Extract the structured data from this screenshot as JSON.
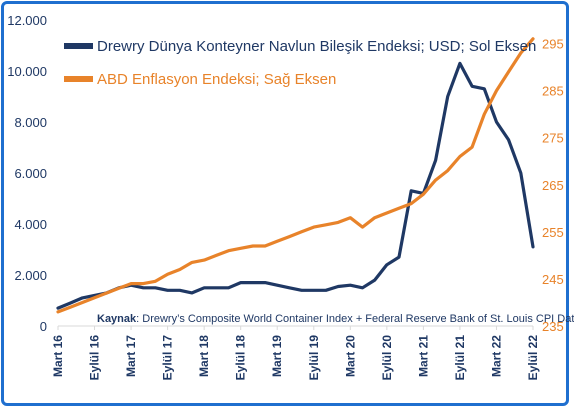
{
  "chart_data": {
    "type": "line",
    "legend_position": "top-left",
    "grid": false,
    "series": [
      {
        "name": "Drewry Dünya Konteyner Navlun Bileşik Endeksi; USD; Sol Eksen",
        "axis": "left",
        "color": "#1f3864",
        "points": [
          [
            "2016-03",
            700
          ],
          [
            "2016-05",
            900
          ],
          [
            "2016-07",
            1100
          ],
          [
            "2016-09",
            1200
          ],
          [
            "2016-11",
            1300
          ],
          [
            "2017-01",
            1500
          ],
          [
            "2017-03",
            1600
          ],
          [
            "2017-05",
            1500
          ],
          [
            "2017-07",
            1500
          ],
          [
            "2017-09",
            1400
          ],
          [
            "2017-11",
            1400
          ],
          [
            "2018-01",
            1300
          ],
          [
            "2018-03",
            1500
          ],
          [
            "2018-05",
            1500
          ],
          [
            "2018-07",
            1500
          ],
          [
            "2018-09",
            1700
          ],
          [
            "2018-11",
            1700
          ],
          [
            "2019-01",
            1700
          ],
          [
            "2019-03",
            1600
          ],
          [
            "2019-05",
            1500
          ],
          [
            "2019-07",
            1400
          ],
          [
            "2019-09",
            1400
          ],
          [
            "2019-11",
            1400
          ],
          [
            "2020-01",
            1550
          ],
          [
            "2020-03",
            1600
          ],
          [
            "2020-05",
            1500
          ],
          [
            "2020-07",
            1800
          ],
          [
            "2020-09",
            2400
          ],
          [
            "2020-11",
            2700
          ],
          [
            "2021-01",
            5300
          ],
          [
            "2021-03",
            5200
          ],
          [
            "2021-05",
            6500
          ],
          [
            "2021-07",
            9000
          ],
          [
            "2021-09",
            10300
          ],
          [
            "2021-11",
            9400
          ],
          [
            "2022-01",
            9300
          ],
          [
            "2022-03",
            8000
          ],
          [
            "2022-05",
            7300
          ],
          [
            "2022-07",
            6000
          ],
          [
            "2022-09",
            3100
          ]
        ]
      },
      {
        "name": "ABD Enflasyon Endeksi; Sağ Eksen",
        "axis": "right",
        "color": "#e8832a",
        "points": [
          [
            "2016-03",
            238
          ],
          [
            "2016-05",
            239
          ],
          [
            "2016-07",
            240
          ],
          [
            "2016-09",
            241
          ],
          [
            "2016-11",
            242
          ],
          [
            "2017-01",
            243
          ],
          [
            "2017-03",
            244
          ],
          [
            "2017-05",
            244
          ],
          [
            "2017-07",
            244.5
          ],
          [
            "2017-09",
            246
          ],
          [
            "2017-11",
            247
          ],
          [
            "2018-01",
            248.5
          ],
          [
            "2018-03",
            249
          ],
          [
            "2018-05",
            250
          ],
          [
            "2018-07",
            251
          ],
          [
            "2018-09",
            251.5
          ],
          [
            "2018-11",
            252
          ],
          [
            "2019-01",
            252
          ],
          [
            "2019-03",
            253
          ],
          [
            "2019-05",
            254
          ],
          [
            "2019-07",
            255
          ],
          [
            "2019-09",
            256
          ],
          [
            "2019-11",
            256.5
          ],
          [
            "2020-01",
            257
          ],
          [
            "2020-03",
            258
          ],
          [
            "2020-05",
            256
          ],
          [
            "2020-07",
            258
          ],
          [
            "2020-09",
            259
          ],
          [
            "2020-11",
            260
          ],
          [
            "2021-01",
            261
          ],
          [
            "2021-03",
            263
          ],
          [
            "2021-05",
            266
          ],
          [
            "2021-07",
            268
          ],
          [
            "2021-09",
            271
          ],
          [
            "2021-11",
            273
          ],
          [
            "2022-01",
            280
          ],
          [
            "2022-03",
            285
          ],
          [
            "2022-05",
            289
          ],
          [
            "2022-07",
            293
          ],
          [
            "2022-09",
            296
          ]
        ]
      }
    ],
    "left_axis": {
      "ylim": [
        0,
        12000
      ],
      "ticks": [
        "0",
        "2.000",
        "4.000",
        "6.000",
        "8.000",
        "10.000",
        "12.000"
      ]
    },
    "right_axis": {
      "ylim": [
        235,
        300
      ],
      "ticks": [
        "235",
        "245",
        "255",
        "265",
        "275",
        "285",
        "295"
      ]
    },
    "x_axis": {
      "range": [
        "2016-03",
        "2022-09"
      ],
      "ticks": [
        [
          "2016-03",
          "Mart 16"
        ],
        [
          "2016-09",
          "Eylül 16"
        ],
        [
          "2017-03",
          "Mart 17"
        ],
        [
          "2017-09",
          "Eylül 17"
        ],
        [
          "2018-03",
          "Mart 18"
        ],
        [
          "2018-09",
          "Eylül 18"
        ],
        [
          "2019-03",
          "Mart 19"
        ],
        [
          "2019-09",
          "Eylül 19"
        ],
        [
          "2020-03",
          "Mart 20"
        ],
        [
          "2020-09",
          "Eylül 20"
        ],
        [
          "2021-03",
          "Mart 21"
        ],
        [
          "2021-09",
          "Eylül 21"
        ],
        [
          "2022-03",
          "Mart 22"
        ],
        [
          "2022-09",
          "Eylül 22"
        ]
      ]
    },
    "source_label": "Kaynak",
    "source_text": ": Drewry’s Composite World Container Index + Federal Reserve Bank of St. Louis CPI Data"
  }
}
